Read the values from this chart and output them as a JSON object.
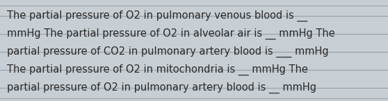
{
  "text_lines": [
    "The partial pressure of O2 in pulmonary venous blood is __",
    "mmHg The partial pressure of O2 in alveolar air is __ mmHg The",
    "partial pressure of CO2 in pulmonary artery blood is ___ mmHg",
    "The partial pressure of O2 in mitochondria is __ mmHg The",
    "partial pressure of O2 in pulmonary artery blood is __ mmHg"
  ],
  "bg_color": "#c8cfd4",
  "line_color": "#9aa5ae",
  "text_color": "#2a2a2a",
  "font_size": 10.5,
  "fig_width": 5.58,
  "fig_height": 1.46,
  "dpi": 100
}
